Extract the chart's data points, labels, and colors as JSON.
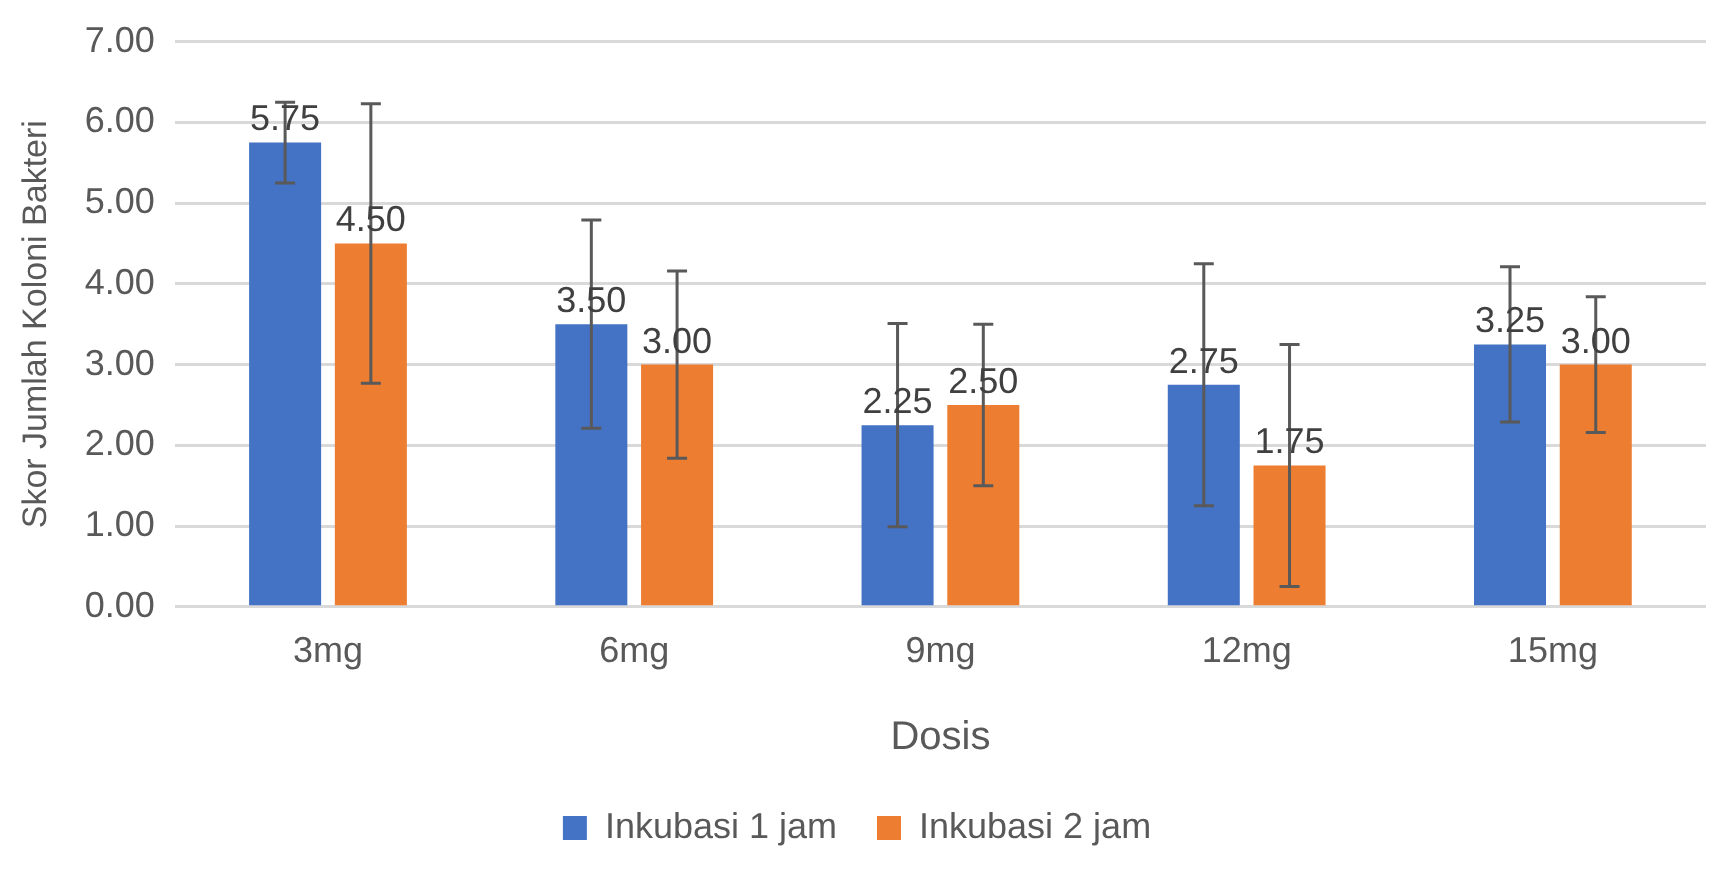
{
  "chart_data": {
    "type": "bar",
    "xlabel": "Dosis",
    "ylabel": "Skor Jumlah Koloni Bakteri",
    "categories": [
      "3mg",
      "6mg",
      "9mg",
      "12mg",
      "15mg"
    ],
    "series": [
      {
        "name": "Inkubasi 1 jam",
        "color": "#4472c4",
        "values": [
          5.75,
          3.5,
          2.25,
          2.75,
          3.25
        ],
        "errors": [
          0.5,
          1.29,
          1.26,
          1.5,
          0.96
        ],
        "value_labels": [
          "5.75",
          "3.50",
          "2.25",
          "2.75",
          "3.25"
        ]
      },
      {
        "name": "Inkubasi 2 jam",
        "color": "#ed7d31",
        "values": [
          4.5,
          3.0,
          2.5,
          1.75,
          3.0
        ],
        "errors": [
          1.73,
          1.16,
          1.0,
          1.5,
          0.84
        ],
        "value_labels": [
          "4.50",
          "3.00",
          "2.50",
          "1.75",
          "3.00"
        ]
      }
    ],
    "ylim": [
      0,
      7
    ],
    "yticks": [
      {
        "value": 0,
        "label": "0.00"
      },
      {
        "value": 1,
        "label": "1.00"
      },
      {
        "value": 2,
        "label": "2.00"
      },
      {
        "value": 3,
        "label": "3.00"
      },
      {
        "value": 4,
        "label": "4.00"
      },
      {
        "value": 5,
        "label": "5.00"
      },
      {
        "value": 6,
        "label": "6.00"
      },
      {
        "value": 7,
        "label": "7.00"
      }
    ],
    "grid": "y",
    "legend": "bottom"
  }
}
